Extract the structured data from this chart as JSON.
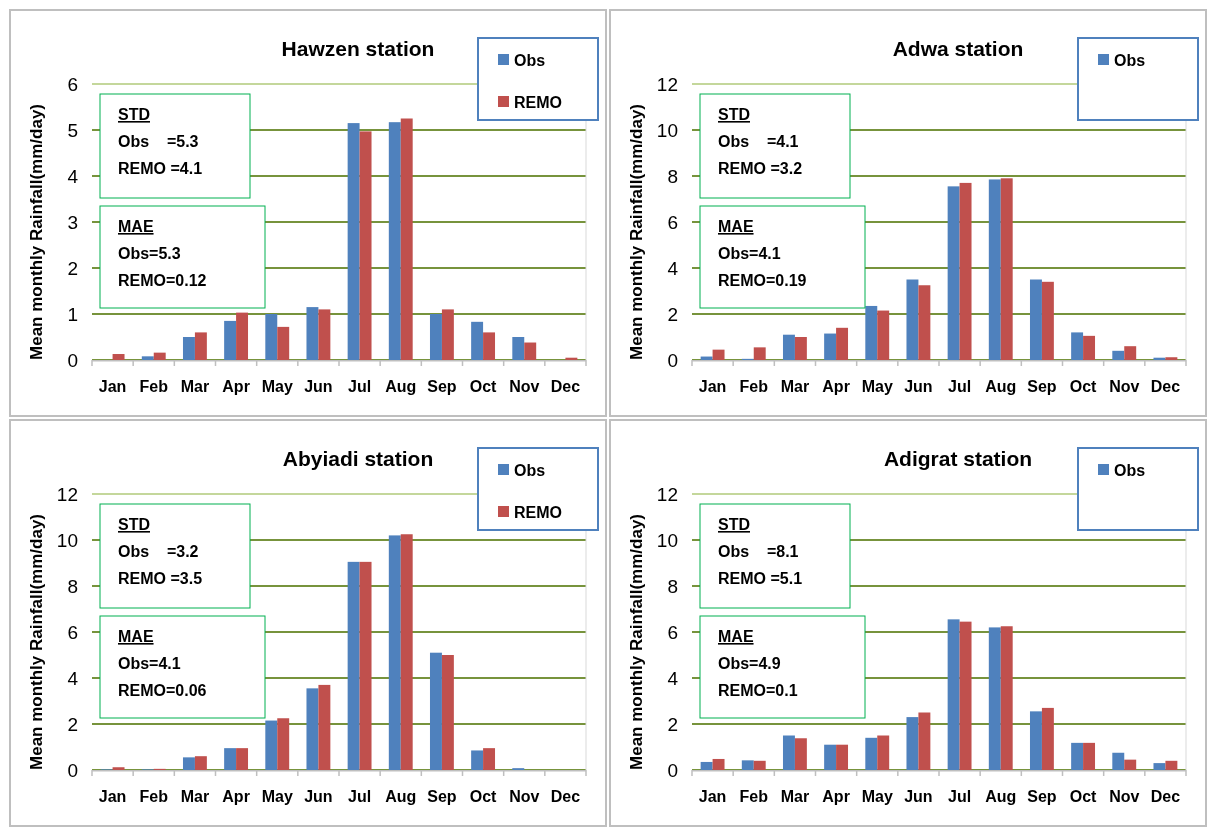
{
  "chart_data": [
    {
      "type": "bar",
      "title": "Hawzen station",
      "ylabel": "Mean monthly Rainfall(mm/day)",
      "categories": [
        "Jan",
        "Feb",
        "Mar",
        "Apr",
        "May",
        "Jun",
        "Jul",
        "Aug",
        "Sep",
        "Oct",
        "Nov",
        "Dec"
      ],
      "ylim": [
        0,
        6
      ],
      "yticks": [
        0,
        1,
        2,
        3,
        4,
        5,
        6
      ],
      "grid": "y",
      "legend": "top right",
      "series": [
        {
          "name": "Obs",
          "color": "#4f81bd",
          "values": [
            0,
            0.08,
            0.5,
            0.85,
            1.0,
            1.15,
            5.15,
            5.17,
            1.0,
            0.83,
            0.5,
            0
          ]
        },
        {
          "name": "REMO",
          "color": "#c0504d",
          "values": [
            0.13,
            0.16,
            0.6,
            1.03,
            0.72,
            1.1,
            4.97,
            5.25,
            1.1,
            0.6,
            0.38,
            0.05
          ]
        }
      ],
      "annotations": [
        "STD\nObs    =5.3\nREMO =4.1",
        "MAE\nObs=5.3\nREMO=0.12"
      ]
    },
    {
      "type": "bar",
      "title": "Adwa station",
      "ylabel": "Mean monthly Rainfall(mm/day)",
      "categories": [
        "Jan",
        "Feb",
        "Mar",
        "Apr",
        "May",
        "Jun",
        "Jul",
        "Aug",
        "Sep",
        "Oct",
        "Nov",
        "Dec"
      ],
      "ylim": [
        0,
        12
      ],
      "yticks": [
        0,
        2,
        4,
        6,
        8,
        10,
        12
      ],
      "grid": "y",
      "legend": "top right",
      "series": [
        {
          "name": "Obs",
          "color": "#4f81bd",
          "values": [
            0.15,
            0.05,
            1.1,
            1.15,
            2.35,
            3.5,
            7.55,
            7.85,
            3.5,
            1.2,
            0.4,
            0.1
          ]
        },
        {
          "color": "#c0504d",
          "values": [
            0.45,
            0.55,
            1.0,
            1.4,
            2.15,
            3.25,
            7.7,
            7.9,
            3.4,
            1.05,
            0.6,
            0.12
          ]
        }
      ],
      "annotations": [
        "STD\nObs    =4.1\nREMO =3.2",
        "MAE\nObs=4.1\nREMO=0.19"
      ]
    },
    {
      "type": "bar",
      "title": "Abyiadi station",
      "ylabel": "Mean monthly Rainfall(mm/day)",
      "categories": [
        "Jan",
        "Feb",
        "Mar",
        "Apr",
        "May",
        "Jun",
        "Jul",
        "Aug",
        "Sep",
        "Oct",
        "Nov",
        "Dec"
      ],
      "ylim": [
        0,
        12
      ],
      "yticks": [
        0,
        2,
        4,
        6,
        8,
        10,
        12
      ],
      "grid": "y",
      "legend": "top right",
      "series": [
        {
          "name": "Obs",
          "color": "#4f81bd",
          "values": [
            0.03,
            0.03,
            0.55,
            0.95,
            2.15,
            3.55,
            9.05,
            10.2,
            5.1,
            0.85,
            0.08,
            0
          ]
        },
        {
          "name": "REMO",
          "color": "#c0504d",
          "values": [
            0.12,
            0.05,
            0.6,
            0.95,
            2.25,
            3.7,
            9.05,
            10.25,
            5.0,
            0.95,
            0,
            0
          ]
        }
      ],
      "annotations": [
        "STD\nObs    =3.2\nREMO =3.5",
        "MAE\nObs=4.1\nREMO=0.06"
      ]
    },
    {
      "type": "bar",
      "title": "Adigrat station",
      "ylabel": "Mean monthly Rainfall(mm/day)",
      "categories": [
        "Jan",
        "Feb",
        "Mar",
        "Apr",
        "May",
        "Jun",
        "Jul",
        "Aug",
        "Sep",
        "Oct",
        "Nov",
        "Dec"
      ],
      "ylim": [
        0,
        12
      ],
      "yticks": [
        0,
        2,
        4,
        6,
        8,
        10,
        12
      ],
      "grid": "y",
      "legend": "top right",
      "series": [
        {
          "name": "Obs",
          "color": "#4f81bd",
          "values": [
            0.35,
            0.42,
            1.5,
            1.1,
            1.4,
            2.3,
            6.55,
            6.2,
            2.55,
            1.18,
            0.75,
            0.3
          ]
        },
        {
          "color": "#c0504d",
          "values": [
            0.48,
            0.4,
            1.38,
            1.1,
            1.5,
            2.5,
            6.45,
            6.25,
            2.7,
            1.18,
            0.45,
            0.4
          ]
        }
      ],
      "annotations": [
        "STD\nObs    =8.1\nREMO =5.1",
        "MAE\nObs=4.9\nREMO=0.1"
      ]
    }
  ]
}
